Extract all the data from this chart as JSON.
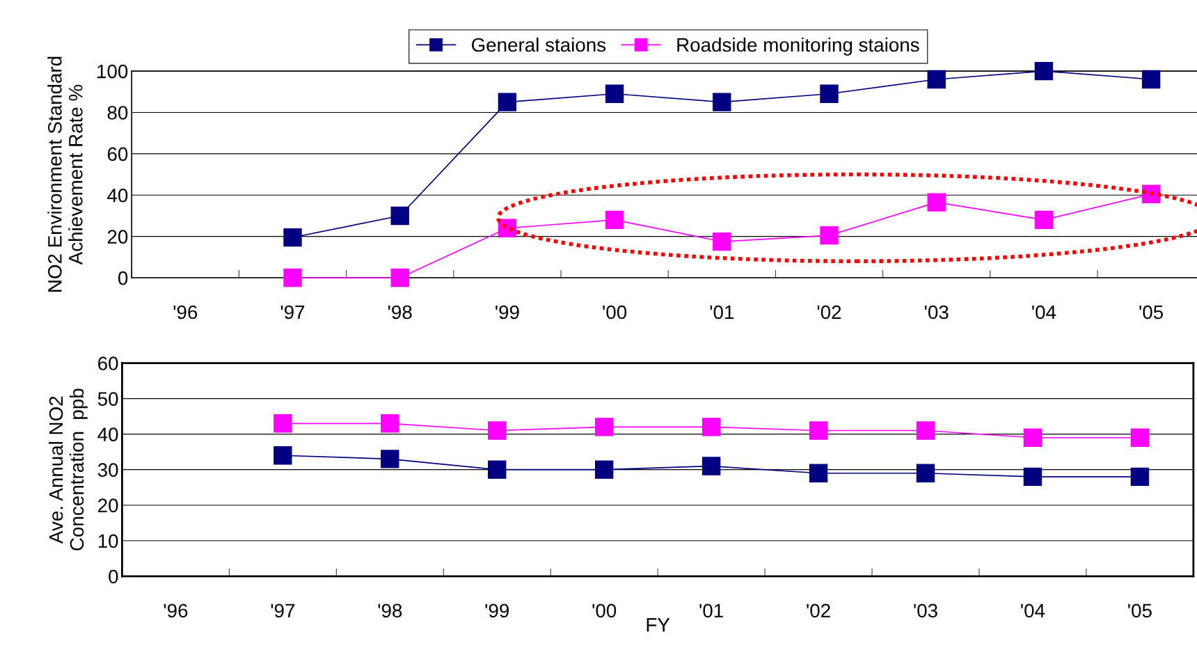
{
  "chart_data": [
    {
      "type": "line",
      "ylabel": "NO2 Environment Standard\nAchievement Rate %",
      "categories": [
        "'96",
        "'97",
        "'98",
        "'99",
        "'00",
        "'01",
        "'02",
        "'03",
        "'04",
        "'05"
      ],
      "series": [
        {
          "name": "General staions",
          "color": "#000080",
          "values": [
            null,
            19.5,
            30,
            85,
            89,
            85,
            89,
            96,
            100,
            96
          ]
        },
        {
          "name": "Roadside monitoring staions",
          "color": "#ff00ff",
          "values": [
            null,
            0,
            0,
            24,
            28,
            17.5,
            20.5,
            36.5,
            28,
            40.5
          ]
        }
      ],
      "ylim": [
        0,
        100
      ],
      "yticks": [
        0,
        20,
        40,
        60,
        80,
        100
      ],
      "grid": "y",
      "legend": "top",
      "marker": "square",
      "line_style": "solid"
    },
    {
      "type": "line",
      "ylabel": "Ave. Annual NO2\nConcentration  ppb",
      "xlabel": "FY",
      "categories": [
        "'96",
        "'97",
        "'98",
        "'99",
        "'00",
        "'01",
        "'02",
        "'03",
        "'04",
        "'05"
      ],
      "series": [
        {
          "color": "#ff00ff",
          "values": [
            null,
            43,
            43,
            41,
            42,
            42,
            41,
            41,
            39,
            39
          ]
        },
        {
          "color": "#000080",
          "values": [
            null,
            34,
            33,
            30,
            30,
            31,
            29,
            29,
            28,
            28
          ]
        }
      ],
      "ylim": [
        0,
        60
      ],
      "yticks": [
        0,
        10,
        20,
        30,
        40,
        50,
        60
      ],
      "grid": "y",
      "marker": "square",
      "line_style": "solid"
    }
  ]
}
